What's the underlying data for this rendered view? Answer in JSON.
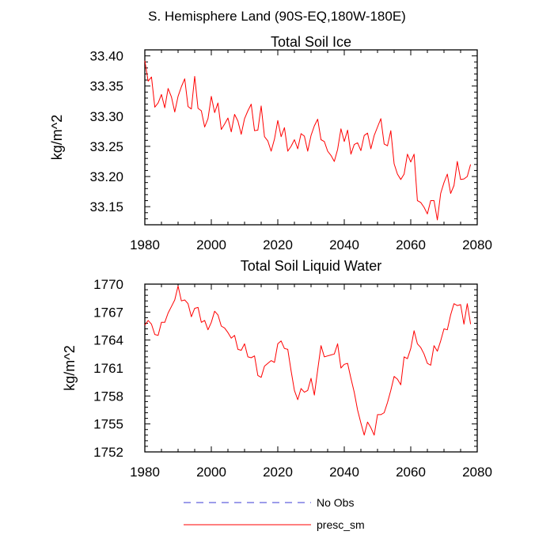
{
  "title": "S. Hemisphere Land (90S-EQ,180W-180E)",
  "colors": {
    "series": "#ff0000",
    "no_obs": "#3a3ad6",
    "axis": "#000000"
  },
  "legend": [
    {
      "label": "No Obs",
      "style": "dashed",
      "color": "#3a3ad6"
    },
    {
      "label": "presc_sm",
      "style": "solid",
      "color": "#ff0000"
    }
  ],
  "chart_data": [
    {
      "type": "line",
      "title": "Total Soil Ice",
      "xlabel": "",
      "ylabel": "kg/m^2",
      "xlim": [
        1980,
        2080
      ],
      "ylim": [
        33.12,
        33.41
      ],
      "xticks": [
        1980,
        2000,
        2020,
        2040,
        2060,
        2080
      ],
      "yticks": [
        33.15,
        33.2,
        33.25,
        33.3,
        33.35,
        33.4
      ],
      "yticklabels": [
        "33.15",
        "33.20",
        "33.25",
        "33.30",
        "33.35",
        "33.40"
      ],
      "series": [
        {
          "name": "presc_sm",
          "x_start": 1980,
          "x_step": 1,
          "values": [
            33.392,
            33.358,
            33.365,
            33.315,
            33.322,
            33.336,
            33.314,
            33.346,
            33.332,
            33.307,
            33.333,
            33.349,
            33.362,
            33.316,
            33.312,
            33.366,
            33.313,
            33.309,
            33.282,
            33.296,
            33.333,
            33.306,
            33.322,
            33.278,
            33.287,
            33.297,
            33.274,
            33.303,
            33.292,
            33.27,
            33.296,
            33.309,
            33.32,
            33.276,
            33.277,
            33.317,
            33.266,
            33.259,
            33.242,
            33.262,
            33.293,
            33.266,
            33.281,
            33.242,
            33.25,
            33.261,
            33.246,
            33.271,
            33.267,
            33.242,
            33.268,
            33.284,
            33.295,
            33.261,
            33.258,
            33.242,
            33.235,
            33.225,
            33.245,
            33.279,
            33.258,
            33.277,
            33.237,
            33.253,
            33.256,
            33.243,
            33.268,
            33.272,
            33.246,
            33.268,
            33.282,
            33.296,
            33.254,
            33.251,
            33.276,
            33.221,
            33.204,
            33.195,
            33.204,
            33.237,
            33.224,
            33.237,
            33.16,
            33.157,
            33.149,
            33.138,
            33.16,
            33.16,
            33.128,
            33.172,
            33.19,
            33.204,
            33.172,
            33.185,
            33.225,
            33.195,
            33.196,
            33.2,
            33.22
          ]
        }
      ]
    },
    {
      "type": "line",
      "title": "Total Soil Liquid Water",
      "xlabel": "",
      "ylabel": "kg/m^2",
      "xlim": [
        1980,
        2080
      ],
      "ylim": [
        1752,
        1770
      ],
      "xticks": [
        1980,
        2000,
        2020,
        2040,
        2060,
        2080
      ],
      "yticks": [
        1752,
        1755,
        1758,
        1761,
        1764,
        1767,
        1770
      ],
      "yticklabels": [
        "1752",
        "1755",
        "1758",
        "1761",
        "1764",
        "1767",
        "1770"
      ],
      "series": [
        {
          "name": "presc_sm",
          "x_start": 1980,
          "x_step": 1,
          "values": [
            1765.6,
            1766.1,
            1765.7,
            1764.6,
            1764.5,
            1765.9,
            1765.9,
            1766.9,
            1767.6,
            1768.3,
            1769.8,
            1768.2,
            1768.3,
            1767.9,
            1766.5,
            1767.4,
            1767.5,
            1765.9,
            1766.1,
            1765.1,
            1765.9,
            1767.1,
            1766.7,
            1765.5,
            1765.3,
            1764.8,
            1764.2,
            1764.5,
            1763.0,
            1762.9,
            1763.6,
            1762.2,
            1762.1,
            1762.3,
            1760.2,
            1760.0,
            1761.2,
            1761.5,
            1761.8,
            1761.6,
            1763.6,
            1763.9,
            1763.1,
            1763.0,
            1760.7,
            1758.6,
            1757.6,
            1758.8,
            1758.4,
            1758.6,
            1759.9,
            1758.1,
            1760.8,
            1763.4,
            1762.2,
            1762.3,
            1762.4,
            1762.5,
            1763.6,
            1761.0,
            1761.4,
            1761.5,
            1759.9,
            1758.4,
            1756.5,
            1755.1,
            1753.8,
            1755.2,
            1754.6,
            1753.8,
            1756.0,
            1756.0,
            1756.2,
            1757.3,
            1758.6,
            1760.1,
            1759.8,
            1759.2,
            1762.2,
            1762.0,
            1763.1,
            1765.0,
            1763.6,
            1763.2,
            1762.5,
            1761.5,
            1761.3,
            1763.4,
            1762.8,
            1763.9,
            1765.2,
            1765.1,
            1766.7,
            1767.9,
            1767.7,
            1767.8,
            1765.7,
            1767.9,
            1765.7
          ]
        }
      ]
    }
  ]
}
